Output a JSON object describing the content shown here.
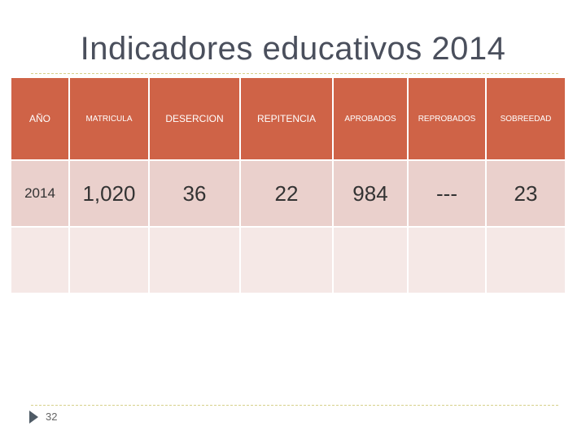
{
  "title": "Indicadores educativos 2014",
  "table": {
    "headers": [
      "AÑO",
      "MATRICULA",
      "DESERCION",
      "REPITENCIA",
      "APROBADOS",
      "REPROBADOS",
      "SOBREEDAD"
    ],
    "rows": [
      [
        "2014",
        "1,020",
        "36",
        "22",
        "984",
        "---",
        "23"
      ],
      [
        "",
        "",
        "",
        "",
        "",
        "",
        ""
      ]
    ]
  },
  "page_number": "32",
  "colors": {
    "header_bg": "#cf6347",
    "row1_bg": "#ead0cc",
    "row2_bg": "#f5e8e6",
    "title_color": "#4a4f5c"
  }
}
